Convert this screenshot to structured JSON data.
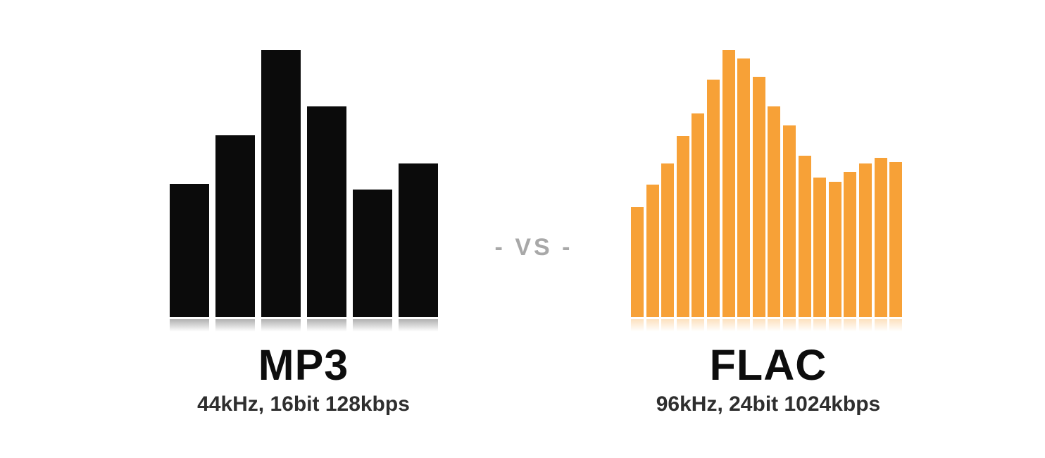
{
  "page": {
    "background": "#ffffff"
  },
  "vs": {
    "label": "- VS -",
    "color": "#a8a8a8"
  },
  "chart_data": [
    {
      "type": "bar",
      "name": "mp3",
      "title": "MP3",
      "subtitle": "44kHz, 16bit 128kbps",
      "color": "#0b0b0b",
      "values": [
        189,
        258,
        379,
        299,
        181,
        218
      ],
      "ylim": [
        0,
        380
      ],
      "unit": "relative_amplitude_px",
      "xlabel": "",
      "ylabel": "",
      "grid": false,
      "legend": false,
      "baseline_reflection": true
    },
    {
      "type": "bar",
      "name": "flac",
      "title": "FLAC",
      "subtitle": "96kHz, 24bit 1024kbps",
      "color": "#f7a137",
      "values": [
        156,
        188,
        218,
        257,
        289,
        337,
        379,
        367,
        341,
        299,
        272,
        229,
        198,
        192,
        206,
        218,
        226,
        220
      ],
      "ylim": [
        0,
        380
      ],
      "unit": "relative_amplitude_px",
      "xlabel": "",
      "ylabel": "",
      "grid": false,
      "legend": false,
      "baseline_reflection": true
    }
  ]
}
